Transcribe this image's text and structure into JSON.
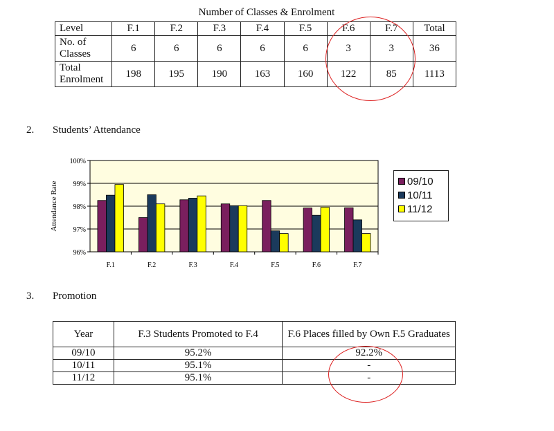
{
  "table1": {
    "title": "Number of Classes & Enrolment",
    "headers": [
      "Level",
      "F.1",
      "F.2",
      "F.3",
      "F.4",
      "F.5",
      "F.6",
      "F.7",
      "Total"
    ],
    "rows": [
      {
        "label_lines": [
          "No. of",
          "Classes"
        ],
        "values": [
          "6",
          "6",
          "6",
          "6",
          "6",
          "3",
          "3",
          "36"
        ]
      },
      {
        "label_lines": [
          "Total",
          "Enrolment"
        ],
        "values": [
          "198",
          "195",
          "190",
          "163",
          "160",
          "122",
          "85",
          "1113"
        ]
      }
    ]
  },
  "section2": {
    "number": "2.",
    "title": "Students’ Attendance"
  },
  "section3": {
    "number": "3.",
    "title": "Promotion"
  },
  "chart_data": {
    "type": "bar",
    "ylabel": "Attendance Rate",
    "ylim": [
      96,
      100
    ],
    "yticks": [
      "96%",
      "97%",
      "98%",
      "99%",
      "100%"
    ],
    "categories": [
      "F.1",
      "F.2",
      "F.3",
      "F.4",
      "F.5",
      "F.6",
      "F.7"
    ],
    "series": [
      {
        "name": "09/10",
        "color": "#7a1f5e",
        "values": [
          98.25,
          97.5,
          98.28,
          98.1,
          98.25,
          97.92,
          97.93
        ]
      },
      {
        "name": "10/11",
        "color": "#1b3a5c",
        "values": [
          98.48,
          98.5,
          98.35,
          98.02,
          96.92,
          97.6,
          97.4
        ]
      },
      {
        "name": "11/12",
        "color": "#ffff00",
        "values": [
          98.95,
          98.1,
          98.45,
          98.02,
          96.8,
          97.95,
          96.8
        ]
      }
    ],
    "legend": "right",
    "grid": true
  },
  "table2": {
    "headers": [
      "Year",
      "F.3 Students Promoted to F.4",
      "F.6 Places filled by Own F.5 Graduates"
    ],
    "rows": [
      [
        "09/10",
        "95.2%",
        "92.2%"
      ],
      [
        "10/11",
        "95.1%",
        "-"
      ],
      [
        "11/12",
        "95.1%",
        "-"
      ]
    ]
  }
}
